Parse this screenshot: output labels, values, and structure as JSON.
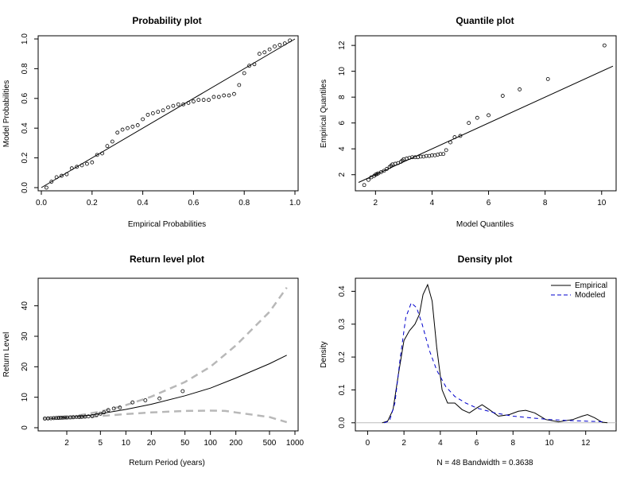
{
  "chart_data": [
    {
      "id": "prob",
      "type": "scatter",
      "title": "Probability plot",
      "xlabel": "Empirical Probabilities",
      "ylabel": "Model Probabilities",
      "xlim": [
        0.0,
        1.0
      ],
      "ylim": [
        0.0,
        1.0
      ],
      "x_ticks": [
        {
          "v": 0.0,
          "t": "0.0"
        },
        {
          "v": 0.2,
          "t": "0.2"
        },
        {
          "v": 0.4,
          "t": "0.4"
        },
        {
          "v": 0.6,
          "t": "0.6"
        },
        {
          "v": 0.8,
          "t": "0.8"
        },
        {
          "v": 1.0,
          "t": "1.0"
        }
      ],
      "y_ticks": [
        {
          "v": 0.0,
          "t": "0.0"
        },
        {
          "v": 0.2,
          "t": "0.2"
        },
        {
          "v": 0.4,
          "t": "0.4"
        },
        {
          "v": 0.6,
          "t": "0.6"
        },
        {
          "v": 0.8,
          "t": "0.8"
        },
        {
          "v": 1.0,
          "t": "1.0"
        }
      ],
      "points": [
        [
          0.02,
          0.0
        ],
        [
          0.04,
          0.04
        ],
        [
          0.06,
          0.07
        ],
        [
          0.08,
          0.08
        ],
        [
          0.1,
          0.09
        ],
        [
          0.12,
          0.13
        ],
        [
          0.14,
          0.14
        ],
        [
          0.16,
          0.15
        ],
        [
          0.18,
          0.16
        ],
        [
          0.2,
          0.17
        ],
        [
          0.22,
          0.22
        ],
        [
          0.24,
          0.23
        ],
        [
          0.26,
          0.28
        ],
        [
          0.28,
          0.31
        ],
        [
          0.3,
          0.37
        ],
        [
          0.32,
          0.39
        ],
        [
          0.34,
          0.4
        ],
        [
          0.36,
          0.41
        ],
        [
          0.38,
          0.42
        ],
        [
          0.4,
          0.46
        ],
        [
          0.42,
          0.49
        ],
        [
          0.44,
          0.5
        ],
        [
          0.46,
          0.51
        ],
        [
          0.48,
          0.52
        ],
        [
          0.5,
          0.54
        ],
        [
          0.52,
          0.55
        ],
        [
          0.54,
          0.56
        ],
        [
          0.56,
          0.56
        ],
        [
          0.58,
          0.57
        ],
        [
          0.6,
          0.58
        ],
        [
          0.62,
          0.59
        ],
        [
          0.64,
          0.59
        ],
        [
          0.66,
          0.59
        ],
        [
          0.68,
          0.61
        ],
        [
          0.7,
          0.61
        ],
        [
          0.72,
          0.62
        ],
        [
          0.74,
          0.62
        ],
        [
          0.76,
          0.63
        ],
        [
          0.78,
          0.69
        ],
        [
          0.8,
          0.77
        ],
        [
          0.82,
          0.82
        ],
        [
          0.84,
          0.83
        ],
        [
          0.86,
          0.9
        ],
        [
          0.88,
          0.91
        ],
        [
          0.9,
          0.93
        ],
        [
          0.92,
          0.95
        ],
        [
          0.94,
          0.96
        ],
        [
          0.96,
          0.97
        ],
        [
          0.98,
          0.99
        ]
      ],
      "reference_line": [
        [
          0.0,
          0.0
        ],
        [
          1.0,
          1.0
        ]
      ]
    },
    {
      "id": "quant",
      "type": "scatter",
      "title": "Quantile plot",
      "xlabel": "Model Quantiles",
      "ylabel": "Empirical Quantiles",
      "xlim": [
        1.4,
        10.4
      ],
      "ylim": [
        1.0,
        12.5
      ],
      "x_ticks": [
        {
          "v": 2,
          "t": "2"
        },
        {
          "v": 4,
          "t": "4"
        },
        {
          "v": 6,
          "t": "6"
        },
        {
          "v": 8,
          "t": "8"
        },
        {
          "v": 10,
          "t": "10"
        }
      ],
      "y_ticks": [
        {
          "v": 2,
          "t": "2"
        },
        {
          "v": 4,
          "t": "4"
        },
        {
          "v": 6,
          "t": "6"
        },
        {
          "v": 8,
          "t": "8"
        },
        {
          "v": 10,
          "t": "10"
        },
        {
          "v": 12,
          "t": "12"
        }
      ],
      "points": [
        [
          1.6,
          1.2
        ],
        [
          1.75,
          1.6
        ],
        [
          1.85,
          1.8
        ],
        [
          1.95,
          1.9
        ],
        [
          2.0,
          2.0
        ],
        [
          2.05,
          2.05
        ],
        [
          2.1,
          2.1
        ],
        [
          2.2,
          2.2
        ],
        [
          2.3,
          2.3
        ],
        [
          2.4,
          2.45
        ],
        [
          2.5,
          2.6
        ],
        [
          2.55,
          2.7
        ],
        [
          2.6,
          2.8
        ],
        [
          2.7,
          2.85
        ],
        [
          2.8,
          2.9
        ],
        [
          2.9,
          3.0
        ],
        [
          2.95,
          3.1
        ],
        [
          3.0,
          3.2
        ],
        [
          3.1,
          3.25
        ],
        [
          3.2,
          3.3
        ],
        [
          3.3,
          3.35
        ],
        [
          3.4,
          3.35
        ],
        [
          3.5,
          3.35
        ],
        [
          3.6,
          3.4
        ],
        [
          3.7,
          3.4
        ],
        [
          3.8,
          3.45
        ],
        [
          3.9,
          3.45
        ],
        [
          4.0,
          3.5
        ],
        [
          4.1,
          3.5
        ],
        [
          4.2,
          3.55
        ],
        [
          4.3,
          3.6
        ],
        [
          4.4,
          3.6
        ],
        [
          4.5,
          3.9
        ],
        [
          4.65,
          4.5
        ],
        [
          4.8,
          4.9
        ],
        [
          5.0,
          5.0
        ],
        [
          5.3,
          6.0
        ],
        [
          5.6,
          6.4
        ],
        [
          6.0,
          6.6
        ],
        [
          6.5,
          8.1
        ],
        [
          7.1,
          8.6
        ],
        [
          8.1,
          9.4
        ],
        [
          10.1,
          12.0
        ]
      ],
      "reference_line": [
        [
          1.4,
          1.4
        ],
        [
          10.4,
          10.4
        ]
      ]
    },
    {
      "id": "ret",
      "type": "line",
      "title": "Return level plot",
      "xlabel": "Return Period (years)",
      "ylabel": "Return Level",
      "log_x": true,
      "xlim": [
        1.0,
        1000
      ],
      "ylim": [
        0,
        48
      ],
      "x_ticks": [
        {
          "v": 2,
          "t": "2"
        },
        {
          "v": 5,
          "t": "5"
        },
        {
          "v": 10,
          "t": "10"
        },
        {
          "v": 20,
          "t": "20"
        },
        {
          "v": 50,
          "t": "50"
        },
        {
          "v": 100,
          "t": "100"
        },
        {
          "v": 200,
          "t": "200"
        },
        {
          "v": 500,
          "t": "500"
        },
        {
          "v": 1000,
          "t": "1000"
        }
      ],
      "y_ticks": [
        {
          "v": 0,
          "t": "0"
        },
        {
          "v": 10,
          "t": "10"
        },
        {
          "v": 20,
          "t": "20"
        },
        {
          "v": 30,
          "t": "30"
        },
        {
          "v": 40,
          "t": "40"
        }
      ],
      "series": [
        {
          "style": "solid",
          "points": [
            [
              1.05,
              3.0
            ],
            [
              1.5,
              3.1
            ],
            [
              2,
              3.3
            ],
            [
              3,
              3.7
            ],
            [
              5,
              4.6
            ],
            [
              10,
              6.0
            ],
            [
              20,
              7.7
            ],
            [
              50,
              10.5
            ],
            [
              100,
              13.0
            ],
            [
              200,
              16.3
            ],
            [
              500,
              21.0
            ],
            [
              800,
              23.8
            ]
          ]
        },
        {
          "style": "dashed-upper",
          "points": [
            [
              1.05,
              3.1
            ],
            [
              1.5,
              3.3
            ],
            [
              2,
              3.6
            ],
            [
              3,
              4.2
            ],
            [
              5,
              5.3
            ],
            [
              10,
              7.4
            ],
            [
              20,
              10.2
            ],
            [
              50,
              15.0
            ],
            [
              100,
              20.0
            ],
            [
              200,
              27.0
            ],
            [
              500,
              38.0
            ],
            [
              800,
              46.0
            ]
          ]
        },
        {
          "style": "dashed-lower",
          "points": [
            [
              1.05,
              2.9
            ],
            [
              1.5,
              2.9
            ],
            [
              2,
              3.0
            ],
            [
              3,
              3.2
            ],
            [
              5,
              3.8
            ],
            [
              10,
              4.5
            ],
            [
              20,
              5.0
            ],
            [
              50,
              5.5
            ],
            [
              100,
              5.6
            ],
            [
              150,
              5.5
            ],
            [
              200,
              5.0
            ],
            [
              500,
              3.5
            ],
            [
              800,
              1.8
            ]
          ]
        }
      ],
      "points": [
        [
          1.1,
          3.0
        ],
        [
          1.2,
          3.05
        ],
        [
          1.3,
          3.1
        ],
        [
          1.4,
          3.15
        ],
        [
          1.5,
          3.2
        ],
        [
          1.6,
          3.25
        ],
        [
          1.7,
          3.3
        ],
        [
          1.8,
          3.3
        ],
        [
          1.9,
          3.35
        ],
        [
          2.0,
          3.35
        ],
        [
          2.2,
          3.4
        ],
        [
          2.4,
          3.45
        ],
        [
          2.6,
          3.5
        ],
        [
          2.8,
          3.5
        ],
        [
          3.0,
          3.6
        ],
        [
          3.3,
          3.65
        ],
        [
          3.6,
          3.7
        ],
        [
          4.0,
          3.8
        ],
        [
          4.5,
          4.2
        ],
        [
          5.0,
          4.6
        ],
        [
          5.5,
          5.0
        ],
        [
          6.2,
          5.8
        ],
        [
          7.2,
          6.3
        ],
        [
          8.5,
          6.6
        ],
        [
          12,
          8.3
        ],
        [
          17,
          9.0
        ],
        [
          25,
          9.6
        ],
        [
          47,
          12.0
        ]
      ]
    },
    {
      "id": "dens",
      "type": "line",
      "title": "Density plot",
      "xlabel": "N = 48   Bandwidth = 0.3638",
      "ylabel": "Density",
      "xlim": [
        -0.5,
        13.5
      ],
      "ylim": [
        -0.015,
        0.43
      ],
      "x_ticks": [
        {
          "v": 0,
          "t": "0"
        },
        {
          "v": 2,
          "t": "2"
        },
        {
          "v": 4,
          "t": "4"
        },
        {
          "v": 6,
          "t": "6"
        },
        {
          "v": 8,
          "t": "8"
        },
        {
          "v": 10,
          "t": "10"
        },
        {
          "v": 12,
          "t": "12"
        }
      ],
      "y_ticks": [
        {
          "v": 0.0,
          "t": "0.0"
        },
        {
          "v": 0.1,
          "t": "0.1"
        },
        {
          "v": 0.2,
          "t": "0.2"
        },
        {
          "v": 0.3,
          "t": "0.3"
        },
        {
          "v": 0.4,
          "t": "0.4"
        }
      ],
      "legend": {
        "placement": "top-right",
        "entries": [
          {
            "name": "Empirical",
            "style": "solid",
            "color": "#000000"
          },
          {
            "name": "Modeled",
            "style": "dashed",
            "color": "#0000cc"
          }
        ]
      },
      "series": [
        {
          "name": "Empirical",
          "style": "solid",
          "color": "#000000",
          "points": [
            [
              0.8,
              0.0
            ],
            [
              1.1,
              0.005
            ],
            [
              1.4,
              0.04
            ],
            [
              1.7,
              0.15
            ],
            [
              2.0,
              0.25
            ],
            [
              2.3,
              0.28
            ],
            [
              2.6,
              0.3
            ],
            [
              2.85,
              0.33
            ],
            [
              3.05,
              0.39
            ],
            [
              3.3,
              0.42
            ],
            [
              3.55,
              0.37
            ],
            [
              3.8,
              0.23
            ],
            [
              4.1,
              0.1
            ],
            [
              4.4,
              0.06
            ],
            [
              4.8,
              0.06
            ],
            [
              5.2,
              0.04
            ],
            [
              5.6,
              0.03
            ],
            [
              6.0,
              0.045
            ],
            [
              6.3,
              0.055
            ],
            [
              6.7,
              0.04
            ],
            [
              7.2,
              0.02
            ],
            [
              7.8,
              0.025
            ],
            [
              8.3,
              0.035
            ],
            [
              8.7,
              0.038
            ],
            [
              9.2,
              0.03
            ],
            [
              9.8,
              0.01
            ],
            [
              10.5,
              0.003
            ],
            [
              11.3,
              0.01
            ],
            [
              11.8,
              0.02
            ],
            [
              12.1,
              0.025
            ],
            [
              12.5,
              0.015
            ],
            [
              12.9,
              0.002
            ],
            [
              13.2,
              0.0
            ]
          ]
        },
        {
          "name": "Modeled",
          "style": "dashed",
          "color": "#0000cc",
          "points": [
            [
              0.9,
              0.0
            ],
            [
              1.2,
              0.005
            ],
            [
              1.5,
              0.06
            ],
            [
              1.8,
              0.2
            ],
            [
              2.1,
              0.32
            ],
            [
              2.4,
              0.365
            ],
            [
              2.7,
              0.35
            ],
            [
              3.0,
              0.3
            ],
            [
              3.4,
              0.22
            ],
            [
              3.8,
              0.16
            ],
            [
              4.3,
              0.11
            ],
            [
              4.8,
              0.08
            ],
            [
              5.4,
              0.06
            ],
            [
              6.0,
              0.045
            ],
            [
              7.0,
              0.03
            ],
            [
              8.0,
              0.02
            ],
            [
              9.0,
              0.015
            ],
            [
              10.0,
              0.01
            ],
            [
              11.0,
              0.007
            ],
            [
              12.0,
              0.005
            ],
            [
              13.0,
              0.003
            ]
          ]
        }
      ],
      "baseline": 0
    }
  ]
}
